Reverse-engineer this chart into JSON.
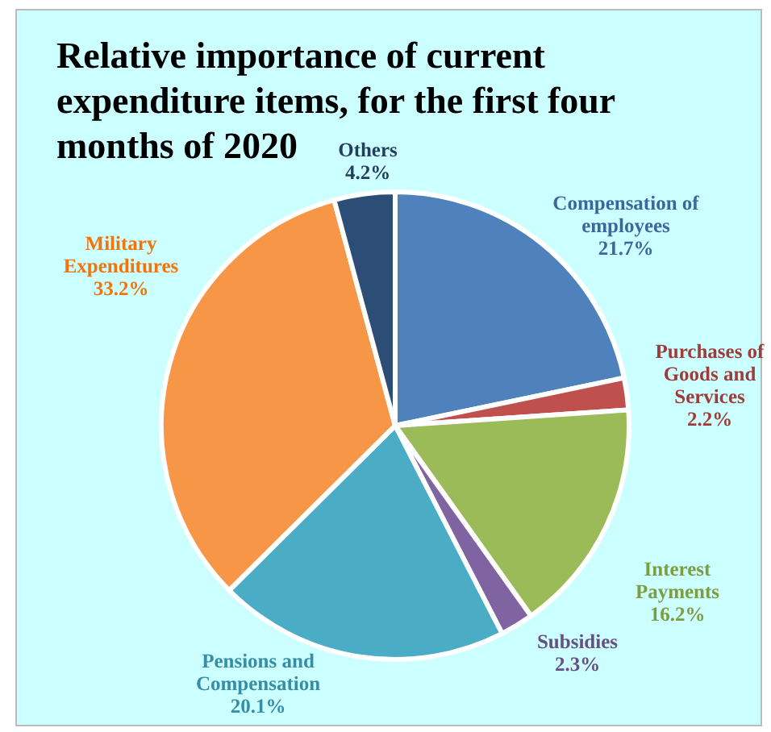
{
  "chart_data": {
    "type": "pie",
    "title": "Relative importance of current expenditure items, for the first four months of 2020",
    "categories": [
      "Compensation of employees",
      "Purchases of Goods and Services",
      "Interest Payments",
      "Subsidies",
      "Pensions and Compensation",
      "Military Expenditures",
      "Others"
    ],
    "values": [
      21.7,
      2.2,
      16.2,
      2.3,
      20.1,
      33.2,
      4.2
    ],
    "value_labels": [
      "21.7%",
      "2.2%",
      "16.2%",
      "2.3%",
      "20.1%",
      "33.2%",
      "4.2%"
    ],
    "colors": [
      "#4f81bd",
      "#c0504d",
      "#9bbb59",
      "#8064a2",
      "#4bacc6",
      "#f79646",
      "#2c4d75"
    ]
  }
}
